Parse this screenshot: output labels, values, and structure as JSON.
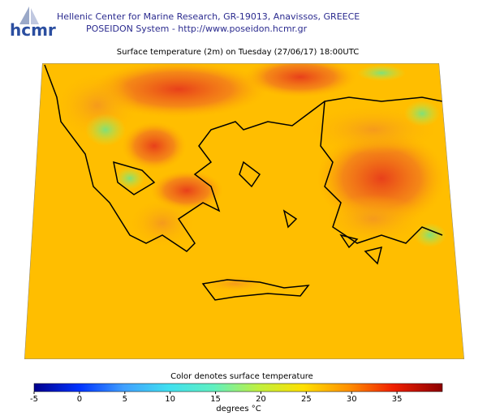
{
  "header": {
    "logo": "hcmr",
    "line1": "Hellenic Center for Marine Research, GR-19013, Anavissos, GREECE",
    "line2": "POSEIDON System - http://www.poseidon.hcmr.gr"
  },
  "map": {
    "title": "Surface temperature (2m) on Tuesday (27/06/17) 18:00UTC"
  },
  "colorbar": {
    "caption": "Color denotes surface temperature",
    "ticks": [
      -5,
      0,
      5,
      10,
      15,
      20,
      25,
      30,
      35
    ],
    "unit": "degrees °C"
  }
}
